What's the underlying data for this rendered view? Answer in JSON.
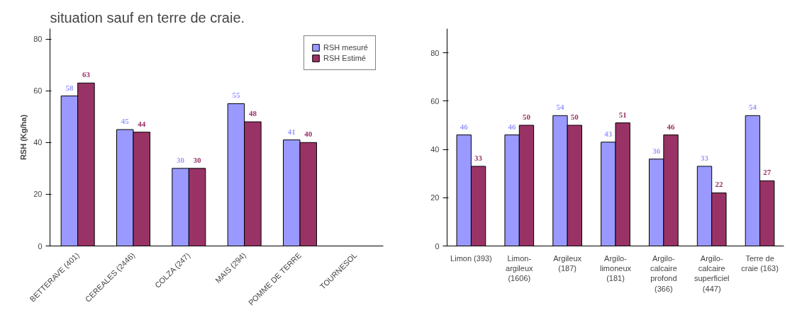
{
  "chart_data": [
    {
      "type": "bar",
      "annotations": [
        "situation sauf en terre de craie."
      ],
      "ylabel": "RSH (Kg/ha)",
      "categories": [
        "BETTERAVE (401)",
        "CEREALES (2446)",
        "COLZA (247)",
        "MAIS (294)",
        "POMME DE TERRE",
        "TOURNESOL"
      ],
      "series": [
        {
          "name": "RSH mesuré",
          "color": "#9999ff",
          "values": [
            58,
            45,
            30,
            55,
            41,
            null
          ]
        },
        {
          "name": "RSH Estimé",
          "color": "#993366",
          "values": [
            63,
            44,
            30,
            48,
            40,
            null
          ]
        }
      ],
      "ylim": [
        0,
        84
      ],
      "yticks": [
        0,
        20,
        40,
        60,
        80
      ],
      "grid": false,
      "legend": "top right",
      "data_labels": true
    },
    {
      "type": "bar",
      "categories": [
        "Limon (393)",
        "Limon-\nargileux\n(1606)",
        "Argileux\n(187)",
        "Argilo-\nlimoneux\n(181)",
        "Argilo-\ncalcaire\nprofond\n(366)",
        "Argilo-\ncalcaire\nsuperficiel\n(447)",
        "Terre de\ncraie (163)"
      ],
      "series": [
        {
          "color": "#9999ff",
          "values": [
            46,
            46,
            54,
            43,
            36,
            33,
            54
          ]
        },
        {
          "color": "#993366",
          "values": [
            33,
            50,
            50,
            51,
            46,
            22,
            27
          ]
        }
      ],
      "ylim": [
        0,
        90
      ],
      "yticks": [
        0,
        20,
        40,
        60,
        80
      ],
      "grid": false,
      "data_labels": true
    }
  ]
}
